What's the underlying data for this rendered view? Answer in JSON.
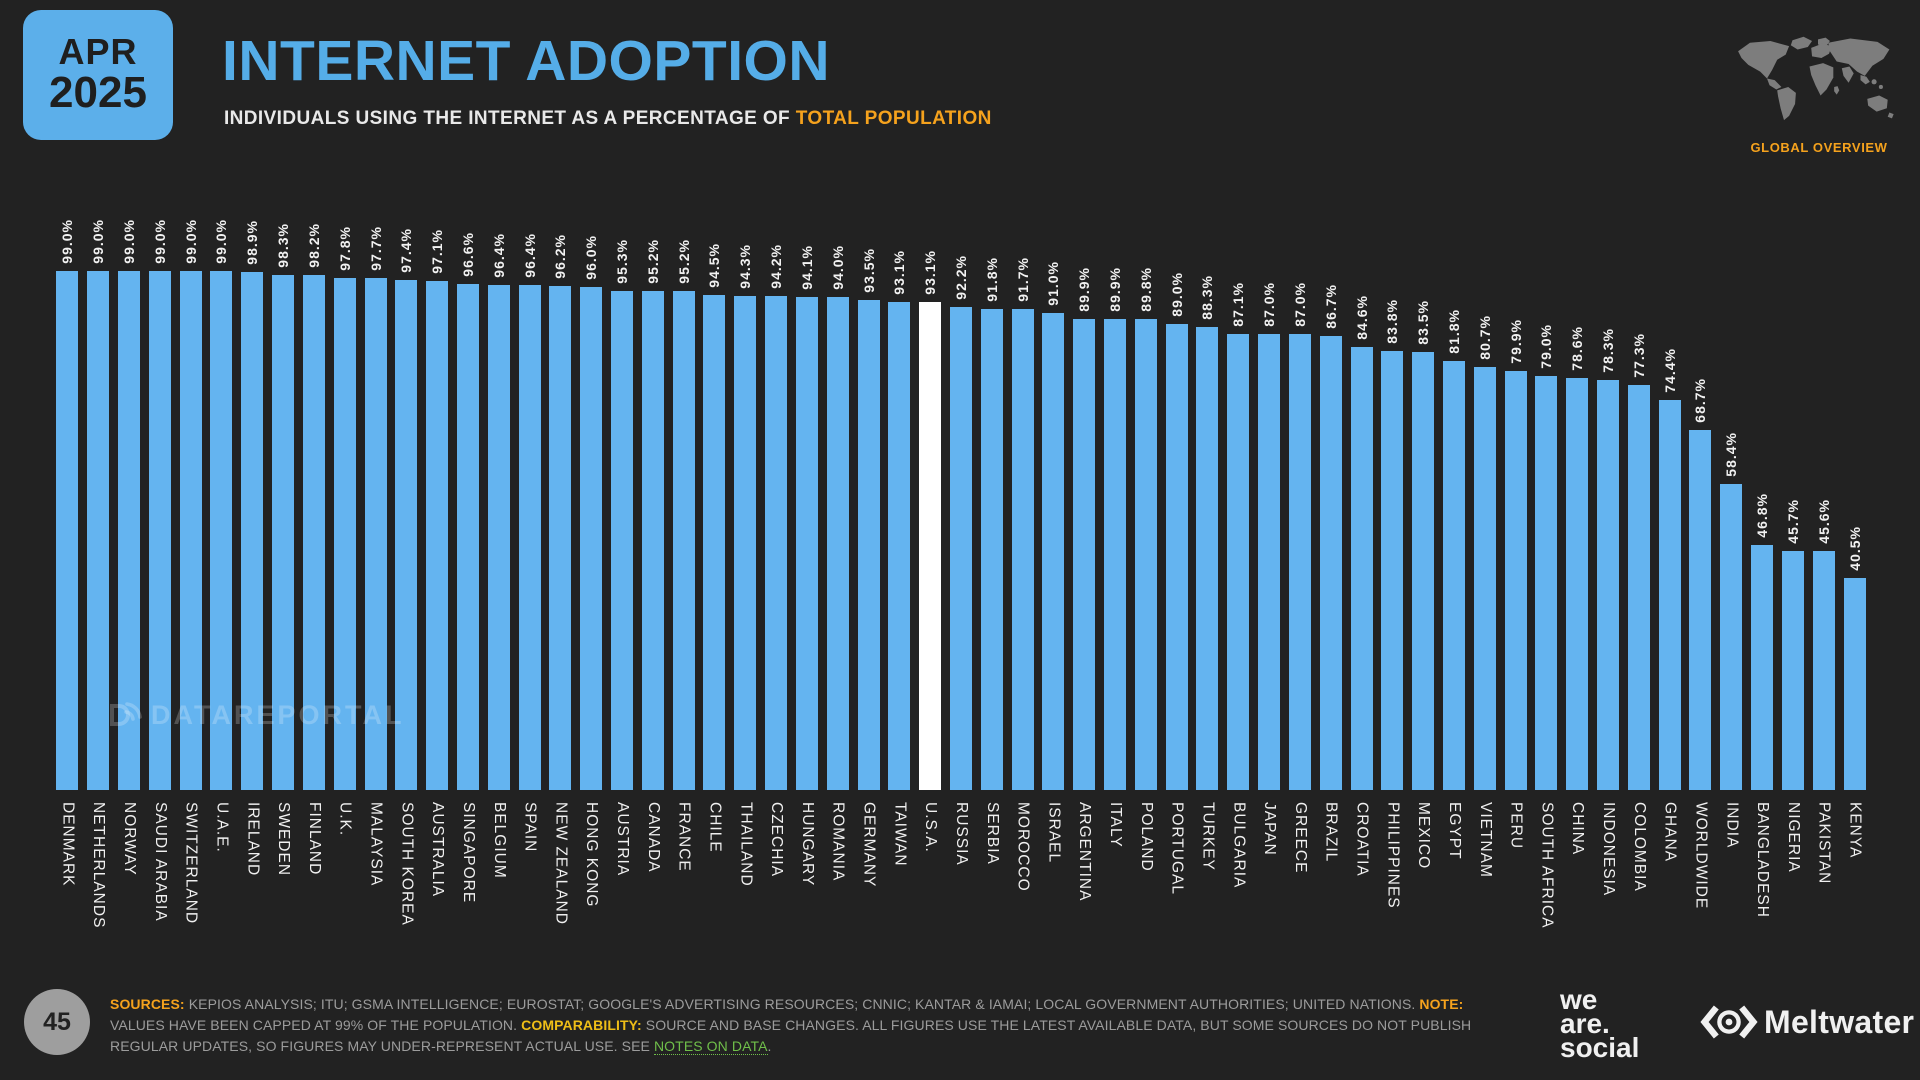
{
  "slide": {
    "badge": {
      "month": "APR",
      "year": "2025"
    },
    "title": "INTERNET ADOPTION",
    "subtitle_prefix": "INDIVIDUALS USING THE INTERNET AS A PERCENTAGE OF ",
    "subtitle_highlight": "TOTAL POPULATION",
    "map_caption": "GLOBAL OVERVIEW",
    "page_number": "45"
  },
  "chart_data": {
    "type": "bar",
    "title": "Internet adoption: individuals using the internet as a percentage of total population",
    "unit": "%",
    "ylim": [
      0,
      99
    ],
    "grid": false,
    "value_label_suffix": "%",
    "bar_color": "#64b4f0",
    "highlight_color": "#ffffff",
    "highlight_index": 28,
    "highlight_category": "U.S.A.",
    "categories": [
      "DENMARK",
      "NETHERLANDS",
      "NORWAY",
      "SAUDI ARABIA",
      "SWITZERLAND",
      "U.A.E.",
      "IRELAND",
      "SWEDEN",
      "FINLAND",
      "U.K.",
      "MALAYSIA",
      "SOUTH KOREA",
      "AUSTRALIA",
      "SINGAPORE",
      "BELGIUM",
      "SPAIN",
      "NEW ZEALAND",
      "HONG KONG",
      "AUSTRIA",
      "CANADA",
      "FRANCE",
      "CHILE",
      "THAILAND",
      "CZECHIA",
      "HUNGARY",
      "ROMANIA",
      "GERMANY",
      "TAIWAN",
      "U.S.A.",
      "RUSSIA",
      "SERBIA",
      "MOROCCO",
      "ISRAEL",
      "ARGENTINA",
      "ITALY",
      "POLAND",
      "PORTUGAL",
      "TURKEY",
      "BULGARIA",
      "JAPAN",
      "GREECE",
      "BRAZIL",
      "CROATIA",
      "PHILIPPINES",
      "MEXICO",
      "EGYPT",
      "VIETNAM",
      "PERU",
      "SOUTH AFRICA",
      "CHINA",
      "INDONESIA",
      "COLOMBIA",
      "GHANA",
      "WORLDWIDE",
      "INDIA",
      "BANGLADESH",
      "NIGERIA",
      "PAKISTAN",
      "KENYA"
    ],
    "values": [
      99.0,
      99.0,
      99.0,
      99.0,
      99.0,
      99.0,
      98.9,
      98.3,
      98.2,
      97.8,
      97.7,
      97.4,
      97.1,
      96.6,
      96.4,
      96.4,
      96.2,
      96.0,
      95.3,
      95.2,
      95.2,
      94.5,
      94.3,
      94.2,
      94.1,
      94.0,
      93.5,
      93.1,
      93.1,
      92.2,
      91.8,
      91.7,
      91.0,
      89.9,
      89.9,
      89.8,
      89.0,
      88.3,
      87.1,
      87.0,
      87.0,
      86.7,
      84.6,
      83.8,
      83.5,
      81.8,
      80.7,
      79.9,
      79.0,
      78.6,
      78.3,
      77.3,
      74.4,
      68.7,
      58.4,
      46.8,
      45.7,
      45.6,
      40.5
    ]
  },
  "watermark": {
    "text": "DATAREPORTAL"
  },
  "footer": {
    "sources_label": "SOURCES:",
    "sources_text": " KEPIOS ANALYSIS; ITU; GSMA INTELLIGENCE; EUROSTAT; GOOGLE'S ADVERTISING RESOURCES; CNNIC; KANTAR & IAMAI; LOCAL GOVERNMENT AUTHORITIES; UNITED NATIONS. ",
    "note_label": "NOTE:",
    "note_text": " VALUES HAVE BEEN CAPPED AT 99% OF THE POPULATION. ",
    "comparability_label": "COMPARABILITY:",
    "comparability_text": " SOURCE AND BASE CHANGES. ALL FIGURES USE THE LATEST AVAILABLE DATA, BUT SOME SOURCES DO NOT PUBLISH REGULAR UPDATES, SO FIGURES MAY UNDER-REPRESENT ACTUAL USE. SEE ",
    "notes_link": "NOTES ON DATA",
    "after_link": "."
  },
  "logos": {
    "we_are_social": [
      "we",
      "are.",
      "social"
    ],
    "meltwater_label": "Meltwater"
  },
  "colors": {
    "background": "#222222",
    "accent_blue": "#5cafea",
    "bar_blue": "#64b4f0",
    "highlight_white": "#ffffff",
    "accent_orange": "#f5a21d",
    "accent_yellow": "#efbe17",
    "accent_green": "#70bf4a",
    "footer_gray": "#9c9c9c"
  }
}
